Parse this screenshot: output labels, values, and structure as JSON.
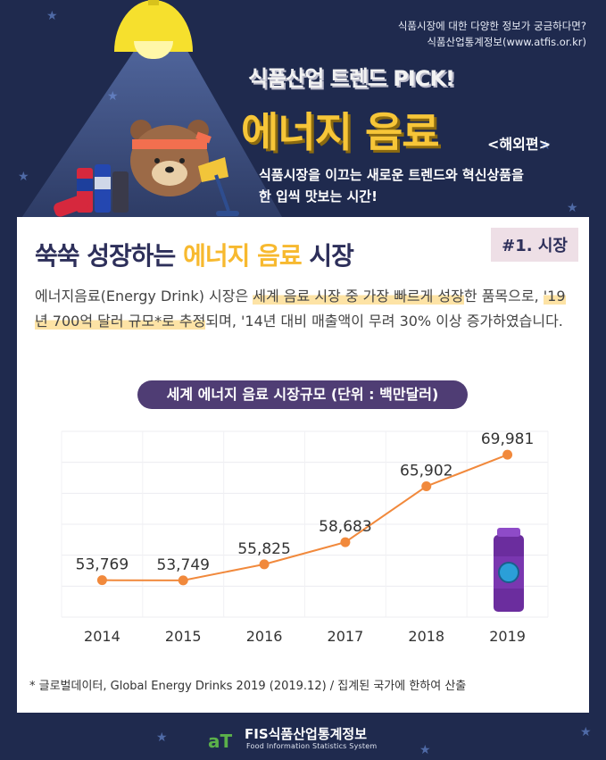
{
  "header": {
    "info_line1": "식품시장에 대한 다양한 정보가 궁금하다면?",
    "info_line2": "식품산업통계정보(www.atfis.or.kr)",
    "pick_title": "식품산업 트렌드 PICK!",
    "main_title": "에너지 음료",
    "sub_tag": "<해외편>",
    "desc_line1": "식품시장을 이끄는 새로운 트렌드와 혁신상품을",
    "desc_line2": "한 입씩 맛보는 시간!"
  },
  "section": {
    "title_part1": "쑥쑥 성장하는 ",
    "title_highlight": "에너지 음료",
    "title_part2": " 시장",
    "tag": "#1. 시장",
    "body_a": "에너지음료(Energy Drink) 시장은 ",
    "body_b": "세계 음료 시장 중 가장 빠르게 성장",
    "body_c": "한 품목으로, ",
    "body_d": "'19년 700억 달러 규모*로 추정",
    "body_e": "되며, '14년 대비 매출액이 무려 30% 이상 증가하였습니다."
  },
  "chart_title": "세계 에너지 음료 시장규모 (단위 : 백만달러)",
  "chart_data": {
    "type": "line",
    "categories": [
      "2014",
      "2015",
      "2016",
      "2017",
      "2018",
      "2019"
    ],
    "values": [
      53769,
      53749,
      55825,
      58683,
      65902,
      69981
    ],
    "value_labels": [
      "53,769",
      "53,749",
      "55,825",
      "58,683",
      "65,902",
      "69,981"
    ],
    "ylim": [
      49000,
      73000
    ],
    "grid": true,
    "line_color": "#f1893c",
    "point_color": "#f1893c"
  },
  "footnote": "* 글로벌데이터, Global Energy Drinks 2019 (2019.12) / 집계된 국가에 한하여 산출",
  "footer": {
    "logo_text": "aT",
    "name": "FIS식품산업통계정보",
    "subtitle": "Food Information Statistics System"
  },
  "colors": {
    "background": "#1f2a4e",
    "accent_yellow": "#f7c638",
    "pill_purple": "#4f3d74"
  }
}
